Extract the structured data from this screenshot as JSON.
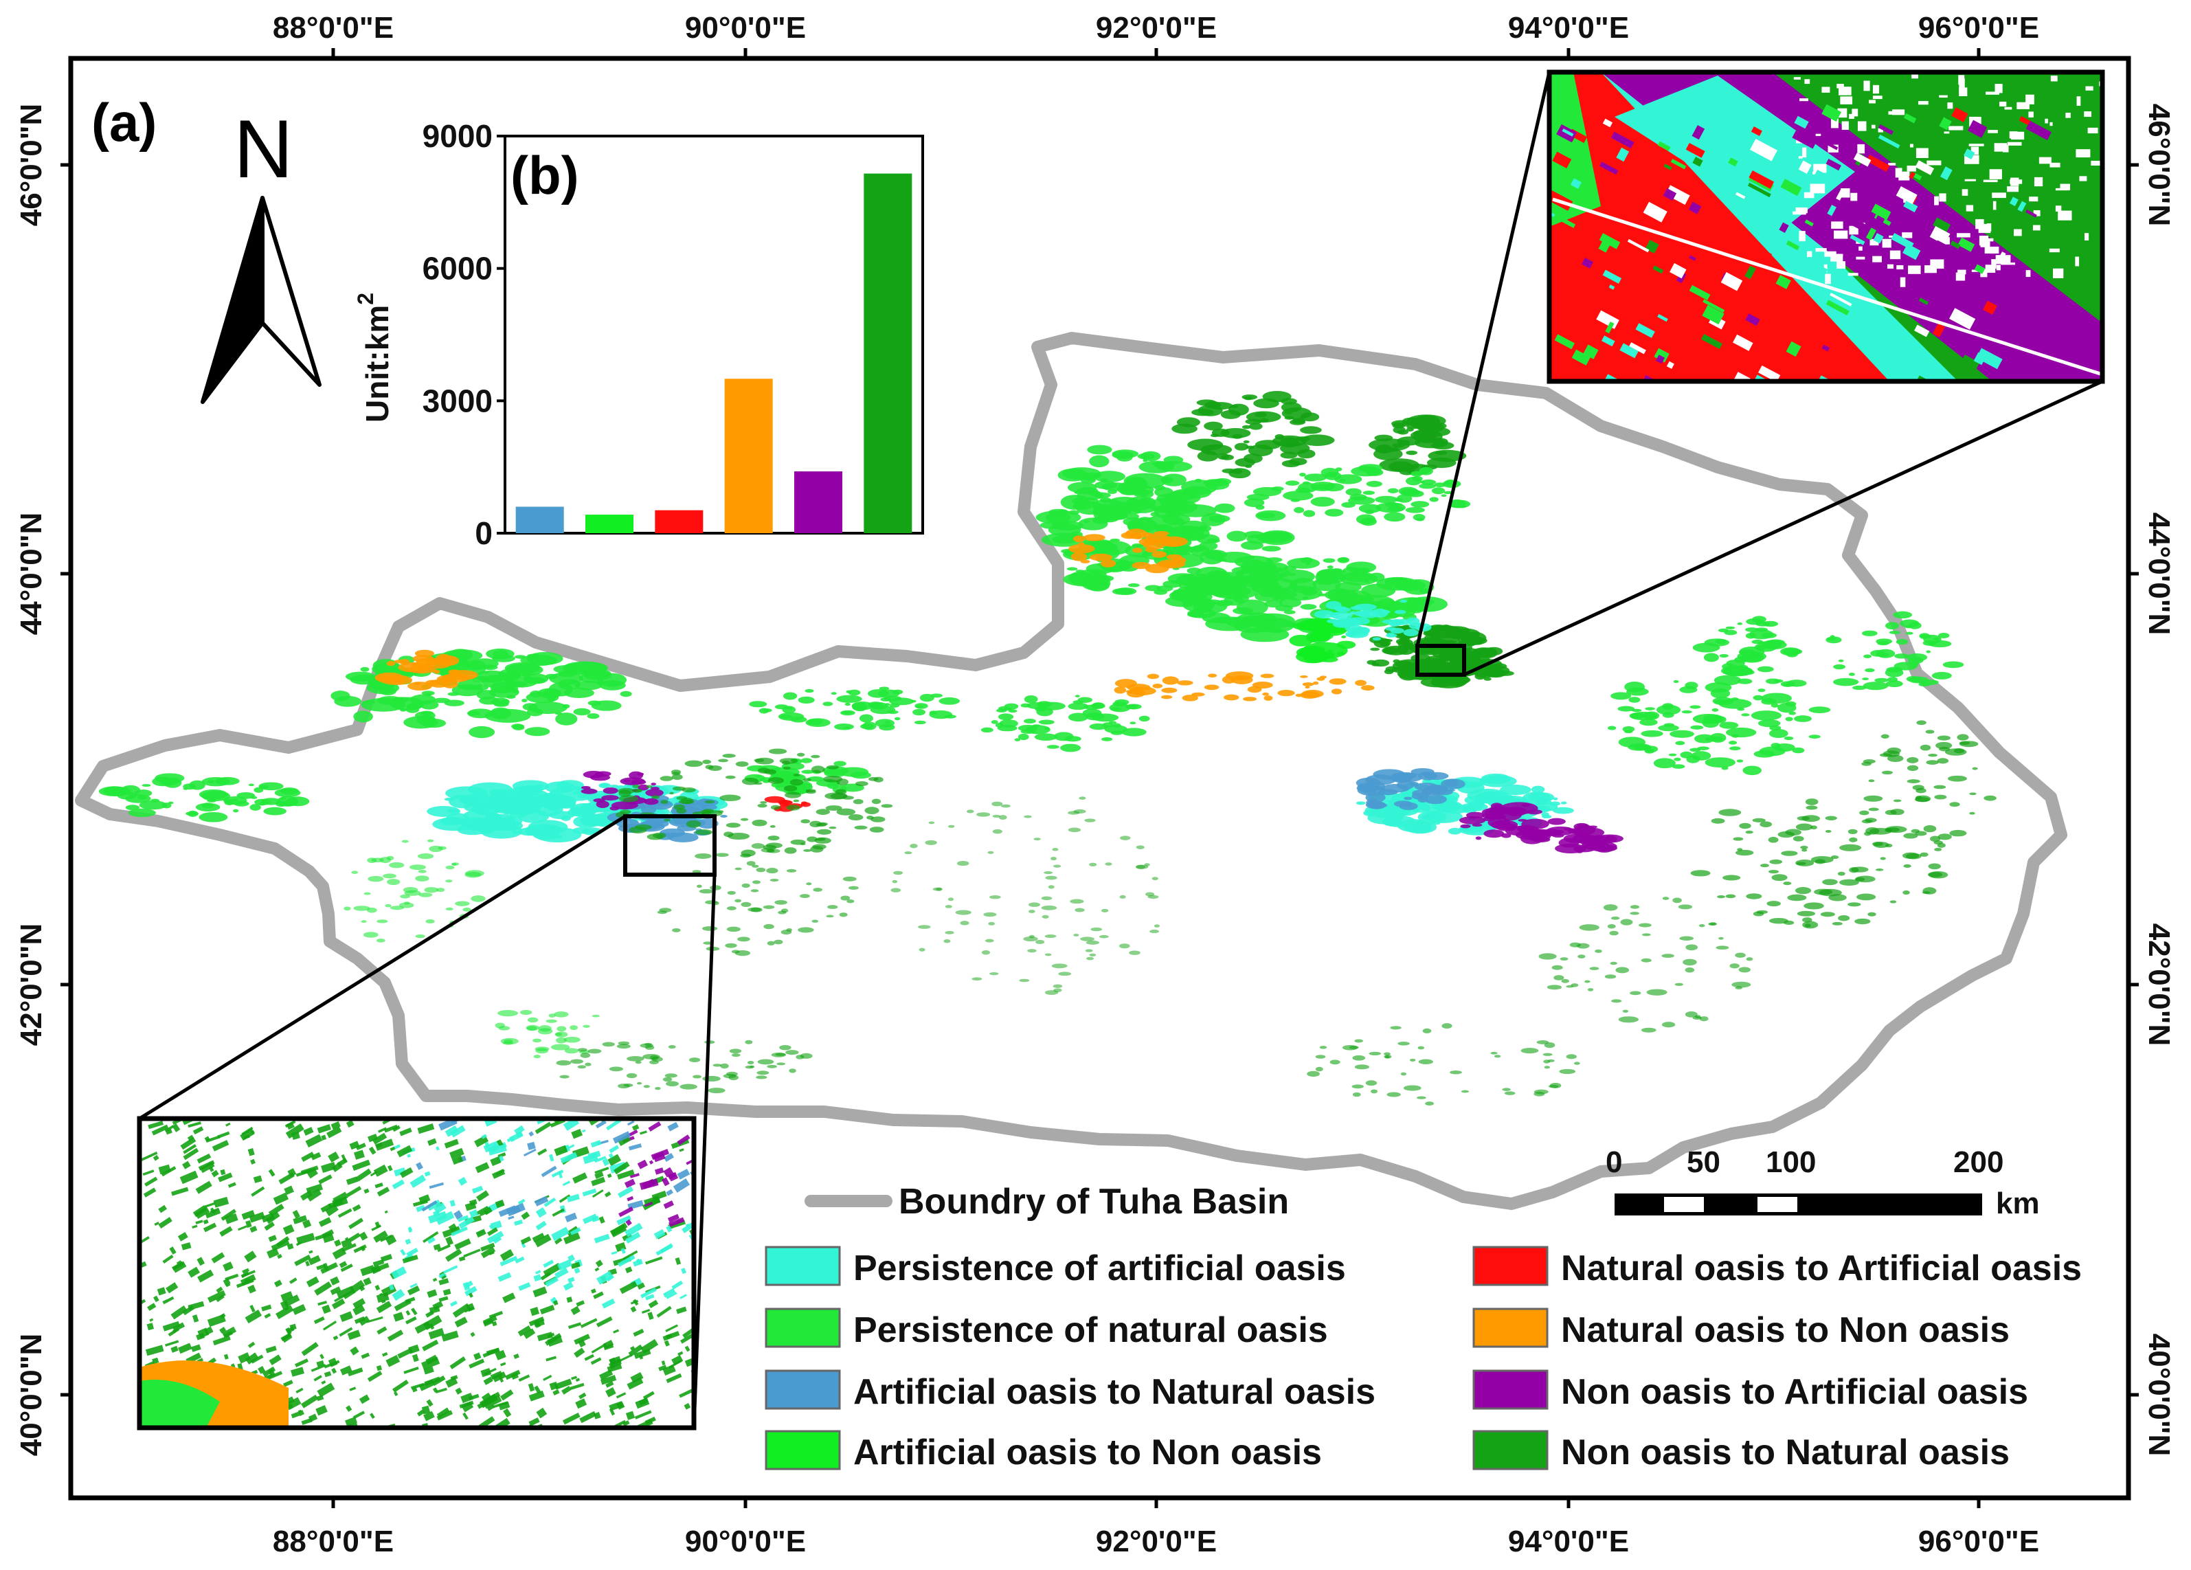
{
  "panel_a_label": "(a)",
  "panel_b_label": "(b)",
  "north_label": "N",
  "lon_ticks": [
    "88°0'0\"E",
    "90°0'0\"E",
    "92°0'0\"E",
    "94°0'0\"E",
    "96°0'0\"E"
  ],
  "lat_ticks": [
    "46°0'0\"N",
    "44°0'0\"N",
    "42°0'0\"N",
    "40°0'0\"N"
  ],
  "boundary_label": "Boundry of Tuha Basin",
  "scale_bar": {
    "ticks": [
      "0",
      "50",
      "100",
      "200"
    ],
    "unit": "km"
  },
  "colors": {
    "boundary": "#a9a9a9",
    "persist_artificial": "#33f5d6",
    "persist_natural": "#22e83a",
    "art_to_nat": "#4a9bd0",
    "art_to_non": "#11ee22",
    "nat_to_art": "#ff0d0d",
    "nat_to_non": "#ff9b00",
    "non_to_art": "#9300a5",
    "non_to_nat": "#14a314"
  },
  "legend": [
    {
      "label": "Persistence of artificial oasis",
      "color": "#33f5d6"
    },
    {
      "label": "Persistence of natural oasis",
      "color": "#22e83a"
    },
    {
      "label": "Artificial oasis to Natural oasis",
      "color": "#4a9bd0"
    },
    {
      "label": "Artificial oasis to Non oasis",
      "color": "#11ee22"
    },
    {
      "label": "Natural oasis to Artificial oasis",
      "color": "#ff0d0d"
    },
    {
      "label": "Natural oasis to Non oasis",
      "color": "#ff9b00"
    },
    {
      "label": "Non oasis to Artificial oasis",
      "color": "#9300a5"
    },
    {
      "label": "Non oasis to Natural oasis",
      "color": "#14a314"
    }
  ],
  "chart_data": {
    "type": "bar",
    "ylabel": "Unit:km",
    "ylabel_superscript": "2",
    "ylim": [
      0,
      9000
    ],
    "yticks": [
      "0",
      "3000",
      "6000",
      "9000"
    ],
    "values": [
      600,
      420,
      520,
      3500,
      1400,
      8150
    ],
    "colors": [
      "#4a9bd0",
      "#11ee22",
      "#ff0d0d",
      "#ff9b00",
      "#9300a5",
      "#14a314"
    ]
  }
}
